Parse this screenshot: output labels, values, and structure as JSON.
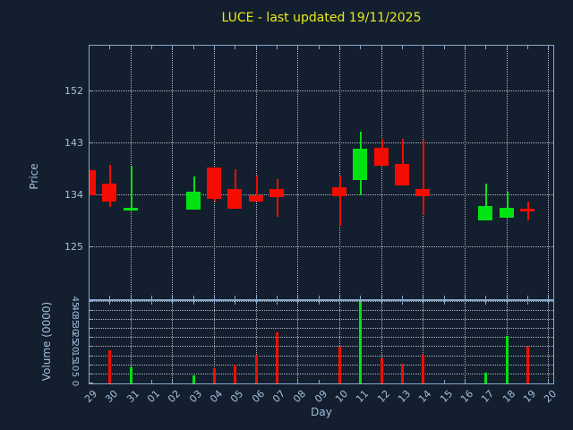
{
  "ticker": "LUCE",
  "style": {
    "background": "#131f2e",
    "axis_border": "#89a8cc",
    "grid": "#b9c0c7",
    "tick_label": "#a3bedd",
    "title_yellow": "#e8e81a",
    "bullish_green": "#00e312",
    "bearish_red": "#f30d00"
  },
  "chart_data": [
    {
      "type": "candlestick",
      "title": "LUCE - last updated 19/11/2025",
      "xlabel": "Day",
      "ylabel": "Price",
      "ylim": [
        116,
        160
      ],
      "yticks": [
        125,
        134,
        143,
        152
      ],
      "grid": "dotted; horizontal at yticks, vertical every 2nd day",
      "x_categories": [
        "29",
        "30",
        "31",
        "01",
        "02",
        "03",
        "04",
        "05",
        "06",
        "07",
        "08",
        "09",
        "10",
        "11",
        "12",
        "13",
        "14",
        "15",
        "16",
        "17",
        "18",
        "19",
        "20"
      ],
      "gridline_days": [
        "31",
        "02",
        "04",
        "06",
        "08",
        "10",
        "12",
        "14",
        "16",
        "18",
        "20"
      ],
      "candles": [
        {
          "day": "29",
          "open": 138.4,
          "high": 138.5,
          "low": 134.0,
          "close": 134.0,
          "color": "red"
        },
        {
          "day": "30",
          "open": 136.1,
          "high": 139.3,
          "low": 132.0,
          "close": 132.9,
          "color": "red"
        },
        {
          "day": "31",
          "open": 131.7,
          "high": 139.1,
          "low": 131.7,
          "close": 131.9,
          "color": "green"
        },
        {
          "day": "03",
          "open": 131.6,
          "high": 137.3,
          "low": 131.6,
          "close": 134.7,
          "color": "green"
        },
        {
          "day": "04",
          "open": 138.8,
          "high": 138.8,
          "low": 132.9,
          "close": 133.4,
          "color": "red"
        },
        {
          "day": "05",
          "open": 135.1,
          "high": 138.6,
          "low": 131.7,
          "close": 131.7,
          "color": "red"
        },
        {
          "day": "06",
          "open": 134.0,
          "high": 137.4,
          "low": 132.9,
          "close": 132.9,
          "color": "red"
        },
        {
          "day": "07",
          "open": 135.1,
          "high": 136.9,
          "low": 130.3,
          "close": 133.8,
          "color": "red"
        },
        {
          "day": "10",
          "open": 135.4,
          "high": 137.5,
          "low": 128.7,
          "close": 133.9,
          "color": "red"
        },
        {
          "day": "11",
          "open": 136.7,
          "high": 145.0,
          "low": 134.0,
          "close": 142.1,
          "color": "green"
        },
        {
          "day": "12",
          "open": 142.3,
          "high": 143.9,
          "low": 139.1,
          "close": 139.1,
          "color": "red"
        },
        {
          "day": "13",
          "open": 139.4,
          "high": 143.9,
          "low": 135.7,
          "close": 135.7,
          "color": "red"
        },
        {
          "day": "14",
          "open": 135.1,
          "high": 143.7,
          "low": 130.6,
          "close": 133.9,
          "color": "red"
        },
        {
          "day": "17",
          "open": 129.7,
          "high": 136.1,
          "low": 129.7,
          "close": 132.2,
          "color": "green"
        },
        {
          "day": "18",
          "open": 130.1,
          "high": 134.6,
          "low": 130.1,
          "close": 131.8,
          "color": "green"
        },
        {
          "day": "19",
          "open": 131.7,
          "high": 133.0,
          "low": 129.7,
          "close": 131.5,
          "color": "red"
        }
      ]
    },
    {
      "type": "bar",
      "ylabel": "Volume (0000)",
      "ylim": [
        0,
        45.3
      ],
      "yticks": [
        0,
        5,
        10,
        15,
        20,
        25,
        30,
        35,
        40,
        45
      ],
      "grid": "dotted; horizontal at yticks, vertical every 2nd day",
      "bars": [
        {
          "day": "30",
          "value": 18,
          "color": "red"
        },
        {
          "day": "31",
          "value": 9,
          "color": "green"
        },
        {
          "day": "03",
          "value": 4.5,
          "color": "green"
        },
        {
          "day": "04",
          "value": 8.5,
          "color": "red"
        },
        {
          "day": "05",
          "value": 10.5,
          "color": "red"
        },
        {
          "day": "06",
          "value": 16,
          "color": "red"
        },
        {
          "day": "07",
          "value": 28,
          "color": "red"
        },
        {
          "day": "10",
          "value": 20,
          "color": "red"
        },
        {
          "day": "11",
          "value": 45,
          "color": "green"
        },
        {
          "day": "12",
          "value": 14,
          "color": "red"
        },
        {
          "day": "13",
          "value": 11,
          "color": "red"
        },
        {
          "day": "14",
          "value": 16,
          "color": "red"
        },
        {
          "day": "17",
          "value": 6,
          "color": "green"
        },
        {
          "day": "18",
          "value": 26,
          "color": "green"
        },
        {
          "day": "19",
          "value": 20,
          "color": "red"
        }
      ]
    }
  ]
}
